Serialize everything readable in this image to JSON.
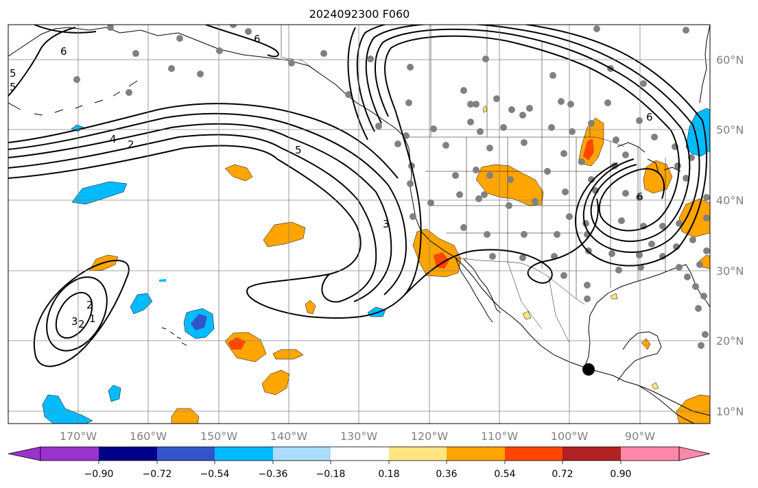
{
  "title": "2024092300 F060",
  "map": {
    "lon_range": [
      -180,
      -80
    ],
    "lat_range": [
      8,
      65
    ],
    "lat_ticks": [
      10,
      20,
      30,
      40,
      50,
      60
    ],
    "lon_ticks": [
      -170,
      -160,
      -150,
      -140,
      -130,
      -120,
      -110,
      -100,
      -90
    ],
    "lat_labels": [
      "10°N",
      "20°N",
      "30°N",
      "40°N",
      "50°N",
      "60°N"
    ],
    "lon_labels": [
      "170°W",
      "160°W",
      "150°W",
      "140°W",
      "130°W",
      "120°W",
      "110°W",
      "100°W",
      "90°W"
    ],
    "gridlines": true,
    "contour_labels": [
      "6",
      "6",
      "5",
      "5",
      "4",
      "2",
      "5",
      "3",
      "3",
      "2",
      "2",
      "1",
      "6",
      "6"
    ]
  },
  "colorbar": {
    "ticks": [
      "−0.90",
      "−0.72",
      "−0.54",
      "−0.36",
      "−0.18",
      "0.18",
      "0.36",
      "0.54",
      "0.72",
      "0.90"
    ],
    "colors": [
      "#9933cc",
      "#000088",
      "#3355cc",
      "#00bbff",
      "#aaddff",
      "#ffffff",
      "#ffe680",
      "#ffa500",
      "#ff4500",
      "#b22222",
      "#ff88aa"
    ],
    "extend": "both"
  },
  "anom_colors": {
    "orange": "#ffa500",
    "red": "#ff4500",
    "yellow": "#ffe680",
    "cyan": "#00bbff",
    "blue": "#3355cc"
  }
}
